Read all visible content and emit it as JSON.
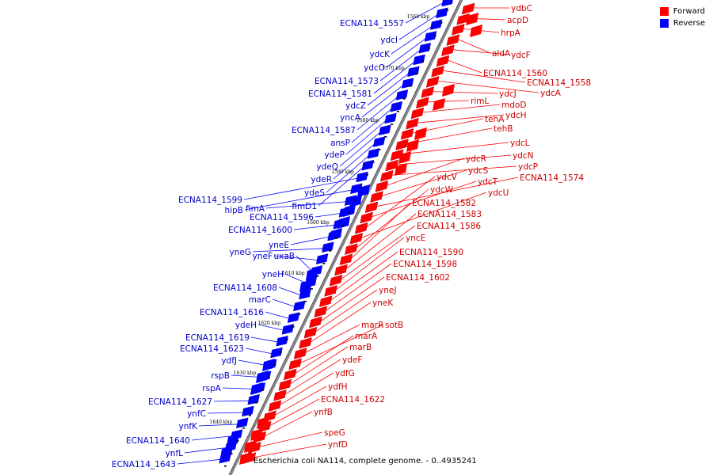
{
  "caption": "Escherichia coli NA114, complete genome. - 0..4935241",
  "legend": [
    {
      "label": "Forward",
      "color": "#ff0000"
    },
    {
      "label": "Reverse",
      "color": "#0000ff"
    }
  ],
  "colors": {
    "forward": "#ff0000",
    "reverse": "#0000ff",
    "forward_label": "#cc0000",
    "reverse_label": "#0000cc",
    "backbone": "#888888"
  },
  "ticks": [
    "1560 kbp",
    "1570 kbp",
    "1580 kbp",
    "1590 kbp",
    "1600 kbp",
    "1610 kbp",
    "1620 kbp",
    "1630 kbp",
    "1640 kbp"
  ],
  "forward_genes": [
    "ydbC",
    "acpD",
    "hrpA",
    "aldA",
    "ydcF",
    "ECNA114_1560",
    "ECNA114_1558",
    "ydcA",
    "ydcJ",
    "rimL",
    "mdoD",
    "ydcH",
    "tehA",
    "tehB",
    "ydcL",
    "ydcN",
    "ydcP",
    "ydcR",
    "ydcS",
    "ECNA114_1574",
    "ydcT",
    "ydcV",
    "ydcU",
    "ydcW",
    "ECNA114_1582",
    "ECNA114_1583",
    "ECNA114_1586",
    "yncE",
    "ECNA114_1590",
    "ECNA114_1598",
    "ECNA114_1602",
    "yneJ",
    "yneK",
    "marR",
    "sotB",
    "marA",
    "marB",
    "ydeF",
    "ydfG",
    "ydfH",
    "ECNA114_1622",
    "ynfB",
    "speG",
    "ynfD"
  ],
  "reverse_genes": [
    "ECNA114_1557",
    "ydcI",
    "ydcK",
    "ydcO",
    "ECNA114_1573",
    "ECNA114_1581",
    "ydcZ",
    "yncA",
    "ECNA114_1587",
    "ansP",
    "ydeP",
    "ydeQ",
    "ydeR",
    "ydeS",
    "fimD1",
    "ECNA114_1599",
    "hipB",
    "fimA",
    "ECNA114_1596",
    "ECNA114_1600",
    "yneE",
    "yneG",
    "yneF",
    "uxaB",
    "yneH",
    "ECNA114_1608",
    "marC",
    "ECNA114_1616",
    "ydeH",
    "ECNA114_1619",
    "ECNA114_1623",
    "ydfJ",
    "rspB",
    "rspA",
    "ECNA114_1627",
    "ynfC",
    "ynfK",
    "ECNA114_1640",
    "ynfL",
    "ECNA114_1643"
  ]
}
